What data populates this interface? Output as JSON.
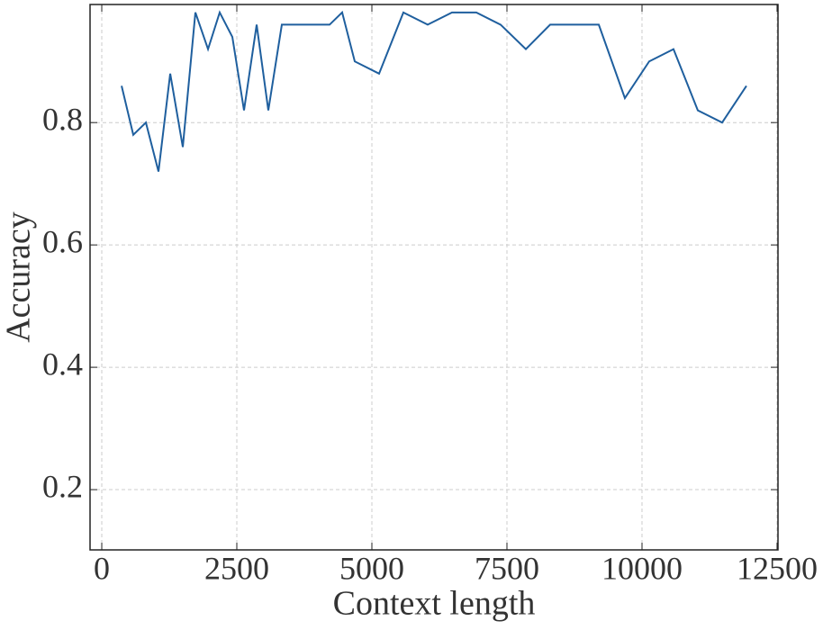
{
  "chart_data": {
    "type": "line",
    "x_label": "Context length",
    "y_label": "Accuracy",
    "x": [
      367,
      583,
      817,
      1050,
      1267,
      1500,
      1733,
      1967,
      2183,
      2417,
      2633,
      2867,
      3083,
      3333,
      4217,
      4450,
      4683,
      5133,
      5583,
      6033,
      6483,
      6933,
      7383,
      7850,
      8300,
      9200,
      9683,
      10133,
      10583,
      11033,
      11483,
      11933
    ],
    "series": [
      {
        "name": "Accuracy",
        "color": "#1f5f9e",
        "values": [
          0.86,
          0.78,
          0.8,
          0.72,
          0.88,
          0.76,
          0.98,
          0.92,
          0.98,
          0.94,
          0.82,
          0.96,
          0.82,
          0.96,
          0.96,
          0.98,
          0.9,
          0.88,
          0.98,
          0.96,
          0.98,
          0.98,
          0.96,
          0.92,
          0.96,
          0.96,
          0.84,
          0.9,
          0.92,
          0.82,
          0.8,
          0.86
        ]
      }
    ],
    "xlim": [
      -217,
      12517
    ],
    "ylim": [
      0.1015,
      0.993
    ],
    "xticks": [
      0,
      2500,
      5000,
      7500,
      10000,
      12500
    ],
    "yticks": [
      0.2,
      0.4,
      0.6,
      0.8
    ],
    "grid": true
  }
}
